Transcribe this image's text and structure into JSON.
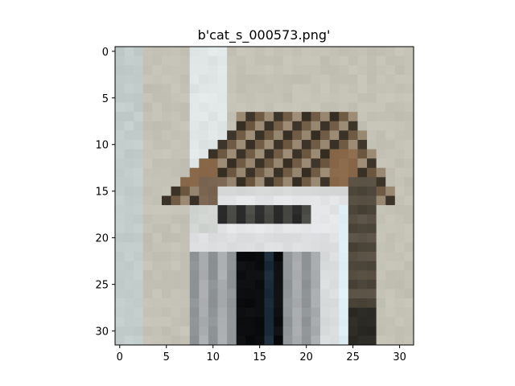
{
  "figure": {
    "title": "b'cat_s_000573.png'",
    "background": "#ffffff",
    "axes_color": "#000000"
  },
  "chart_data": {
    "type": "heatmap",
    "image_grid": {
      "width": 32,
      "height": 32
    },
    "title": "b'cat_s_000573.png'",
    "x_ticks": [
      0,
      5,
      10,
      15,
      20,
      25,
      30
    ],
    "y_ticks": [
      0,
      5,
      10,
      15,
      20,
      25,
      30
    ],
    "xlim": [
      -0.5,
      31.5
    ],
    "ylim": [
      31.5,
      -0.5
    ],
    "xlabel": "",
    "ylabel": "",
    "grid": false,
    "palette": {
      "wall_left": "#c2ccca",
      "wall_mid": "#c8c4b8",
      "wall_light": "#dfe6e5",
      "wall_right": "#c4c1b5",
      "cat_dark": "#3b3227",
      "cat_brown": "#6e5a43",
      "cat_rust": "#8a6a4a",
      "cat_light": "#9a8a74",
      "cat_shadow": "#4a4438",
      "box_white": "#e2e4e6",
      "box_grey": "#a9adaf",
      "box_mid": "#8f9497",
      "box_dark": "#2a2a2a",
      "black": "#0c0d0f",
      "navy": "#1b2b3a",
      "blue_white": "#dfeef5"
    }
  }
}
